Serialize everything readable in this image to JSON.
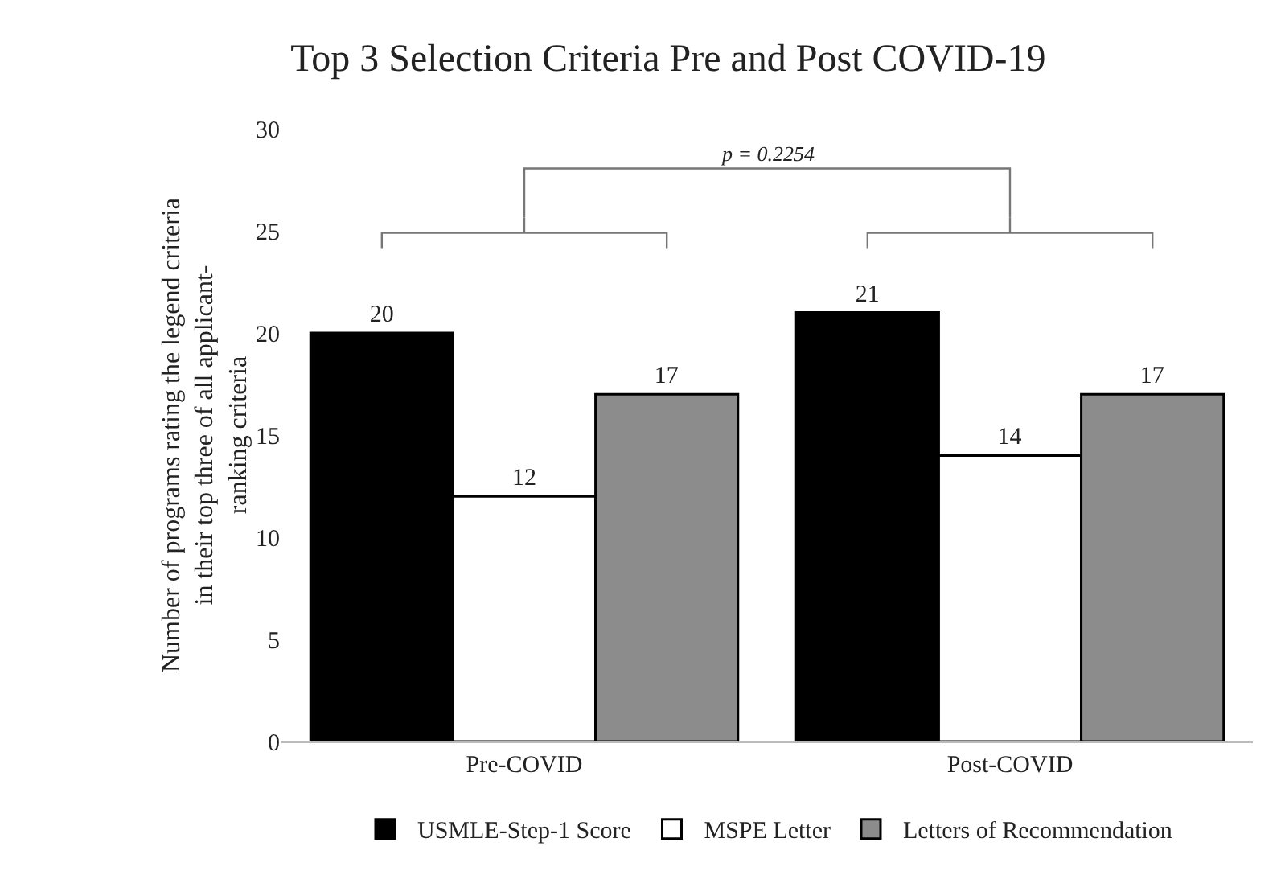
{
  "chart_data": {
    "type": "bar",
    "title": "Top 3 Selection Criteria Pre and Post COVID-19",
    "ylabel": "Number of programs rating the legend criteria in their top three of all applicant-ranking criteria",
    "categories": [
      "Pre-COVID",
      "Post-COVID"
    ],
    "series": [
      {
        "name": "USMLE-Step-1 Score",
        "color": "#000000",
        "values": [
          20,
          21
        ]
      },
      {
        "name": "MSPE Letter",
        "color": "#ffffff",
        "values": [
          12,
          14
        ]
      },
      {
        "name": "Letters of Recommendation",
        "color": "#8c8c8c",
        "values": [
          17,
          17
        ]
      }
    ],
    "ylim": [
      0,
      30
    ],
    "yticks": [
      0,
      5,
      10,
      15,
      20,
      25,
      30
    ],
    "grid": false,
    "legend": "bottom",
    "data_labels": true,
    "annotations": [
      "p = 0.2254"
    ]
  }
}
